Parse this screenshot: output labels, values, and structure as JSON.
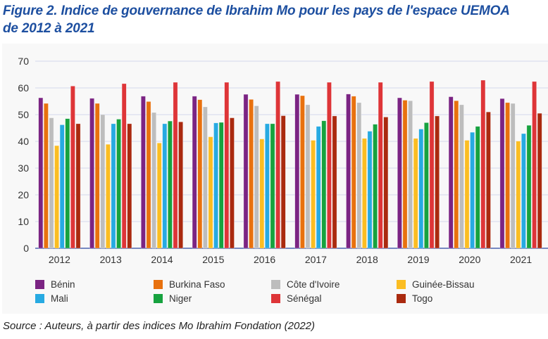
{
  "title_line1": "Figure 2. Indice de gouvernance de Ibrahim Mo pour les pays de l'espace UEMOA",
  "title_line2": "de 2012 à 2021",
  "source": "Source :  Auteurs, à partir des indices Mo Ibrahim Fondation (2022)",
  "chart_data": {
    "type": "bar",
    "title": "Indice de gouvernance de Ibrahim Mo pour les pays de l'espace UEMOA de 2012 à 2021",
    "xlabel": "",
    "ylabel": "",
    "ylim": [
      0,
      70
    ],
    "yticks": [
      0,
      10,
      20,
      30,
      40,
      50,
      60,
      70
    ],
    "grid": true,
    "legend_position": "bottom",
    "categories": [
      "2012",
      "2013",
      "2014",
      "2015",
      "2016",
      "2017",
      "2018",
      "2019",
      "2020",
      "2021"
    ],
    "series": [
      {
        "name": "Bénin",
        "color": "#7b2483",
        "values": [
          56.3,
          56.1,
          56.9,
          56.9,
          57.6,
          57.6,
          57.7,
          56.3,
          56.7,
          56.0
        ]
      },
      {
        "name": "Burkina Faso",
        "color": "#e8710e",
        "values": [
          54.2,
          54.2,
          54.9,
          55.6,
          55.7,
          57.1,
          56.9,
          55.4,
          55.2,
          54.5
        ]
      },
      {
        "name": "Côte d'Ivoire",
        "color": "#bdbdbd",
        "values": [
          48.8,
          50.0,
          50.8,
          52.9,
          53.3,
          53.7,
          54.5,
          55.2,
          53.7,
          54.2
        ]
      },
      {
        "name": "Guinée-Bissau",
        "color": "#fbbd22",
        "values": [
          38.4,
          38.9,
          39.4,
          41.7,
          40.9,
          40.4,
          41.1,
          41.1,
          40.4,
          40.1
        ]
      },
      {
        "name": "Mali",
        "color": "#27aae2",
        "values": [
          46.2,
          46.6,
          46.6,
          46.9,
          46.6,
          45.6,
          43.8,
          44.6,
          43.4,
          42.9
        ]
      },
      {
        "name": "Niger",
        "color": "#17a23f",
        "values": [
          48.5,
          48.3,
          47.6,
          47.1,
          46.6,
          47.7,
          46.4,
          47.0,
          45.6,
          46.0
        ]
      },
      {
        "name": "Sénégal",
        "color": "#de3538",
        "values": [
          60.7,
          61.6,
          62.1,
          62.1,
          62.4,
          62.1,
          62.1,
          62.4,
          62.9,
          62.4
        ]
      },
      {
        "name": "Togo",
        "color": "#aa2a0f",
        "values": [
          46.6,
          46.6,
          47.3,
          48.8,
          49.6,
          49.5,
          49.1,
          49.5,
          51.0,
          50.5
        ]
      }
    ]
  }
}
